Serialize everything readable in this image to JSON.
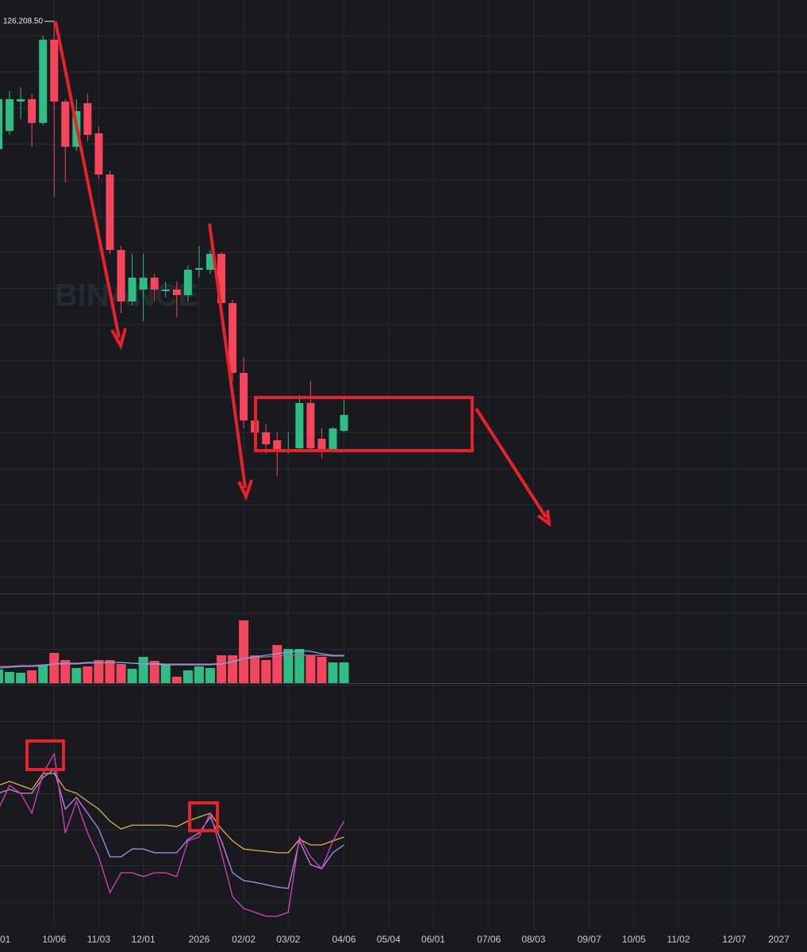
{
  "chart_data": [
    {
      "type": "candlestick",
      "watermark": "BINANCE",
      "categories": [
        "01",
        null,
        null,
        null,
        null,
        "10/06",
        null,
        null,
        null,
        "11/03",
        null,
        null,
        null,
        "12/01",
        null,
        null,
        null,
        null,
        "2026",
        null,
        null,
        null,
        "02/02",
        null,
        null,
        null,
        "03/02",
        null,
        null,
        null,
        null,
        "04/06",
        null,
        null,
        null,
        "05/04",
        null,
        null,
        null,
        "06/01",
        null,
        null,
        null,
        null,
        "07/06",
        null,
        null,
        null,
        "08/03",
        null,
        null,
        null,
        null,
        "09/07",
        null,
        null,
        null,
        "10/05",
        null,
        null,
        null,
        "11/02",
        null,
        null,
        null,
        null,
        "12/07",
        null,
        null,
        null,
        "2027"
      ],
      "ohlc": [
        [
          110100,
          117400,
          109900,
          116400
        ],
        [
          112400,
          117400,
          111900,
          116400
        ],
        [
          116100,
          117900,
          113900,
          116400
        ],
        [
          116400,
          117100,
          110400,
          113400
        ],
        [
          113400,
          124400,
          113100,
          123900
        ],
        [
          123900,
          126208.5,
          104100,
          116100
        ],
        [
          116100,
          116400,
          105900,
          110400
        ],
        [
          110400,
          116400,
          109900,
          114900
        ],
        [
          115900,
          117100,
          111100,
          111900
        ],
        [
          112100,
          112900,
          106400,
          106900
        ],
        [
          106900,
          107400,
          96900,
          97400
        ],
        [
          97400,
          97900,
          89400,
          90900
        ],
        [
          90900,
          96900,
          90400,
          93900
        ],
        [
          92400,
          96900,
          88400,
          93900
        ],
        [
          93900,
          94400,
          90900,
          92400
        ],
        [
          92200,
          93400,
          91400,
          92400
        ],
        [
          92400,
          93400,
          88900,
          91700
        ],
        [
          91700,
          95400,
          90900,
          94900
        ],
        [
          94900,
          97900,
          93900,
          95100
        ],
        [
          94900,
          97400,
          94400,
          96900
        ],
        [
          96900,
          97100,
          89900,
          90700
        ],
        [
          90700,
          91100,
          80900,
          81900
        ],
        [
          81900,
          83900,
          74900,
          75900
        ],
        [
          75900,
          76900,
          71900,
          74400
        ],
        [
          74400,
          75400,
          71700,
          72900
        ],
        [
          73400,
          74400,
          68900,
          71900
        ],
        [
          71900,
          74400,
          71700,
          72200
        ],
        [
          72400,
          79100,
          71900,
          78100
        ],
        [
          78100,
          80900,
          71900,
          72400
        ],
        [
          73600,
          74900,
          71100,
          72200
        ],
        [
          72300,
          75100,
          72100,
          74900
        ],
        [
          74600,
          78900,
          74400,
          76600
        ],
        null,
        null,
        null,
        null,
        null,
        null,
        null,
        null,
        null,
        null,
        null,
        null,
        null,
        null,
        null,
        null,
        null,
        null,
        null,
        null,
        null,
        null,
        null,
        null,
        null,
        null,
        null,
        null,
        null,
        null,
        null,
        null,
        null,
        null,
        null,
        null,
        null,
        null,
        null
      ],
      "up_color": "#2ebd85",
      "down_color": "#f6465d",
      "ylim": [
        53900,
        128900
      ],
      "max_label": {
        "value": 126208.5,
        "label": "126,208.50"
      }
    },
    {
      "type": "volume",
      "values": [
        18,
        15,
        14,
        17,
        24,
        39,
        30,
        20,
        22,
        30,
        30,
        25,
        19,
        34,
        29,
        25,
        9,
        17,
        22,
        20,
        36,
        36,
        80,
        36,
        30,
        49,
        44,
        44,
        36,
        34,
        27,
        27,
        null,
        null,
        null,
        null,
        null,
        null,
        null,
        null,
        null,
        null,
        null,
        null,
        null,
        null,
        null,
        null,
        null,
        null,
        null,
        null,
        null,
        null,
        null,
        null,
        null,
        null,
        null,
        null,
        null,
        null,
        null,
        null,
        null,
        null,
        null,
        null,
        null,
        null,
        null
      ],
      "lines": [
        {
          "color": "#e0588a",
          "values": [
            22,
            22,
            23,
            23,
            24,
            25,
            25,
            25,
            26,
            26,
            27,
            27,
            26,
            26,
            26,
            25,
            25,
            25,
            25,
            25,
            26,
            27,
            32,
            33,
            34,
            35,
            36,
            36,
            36,
            36,
            35,
            35,
            null,
            null,
            null,
            null,
            null,
            null,
            null,
            null,
            null,
            null,
            null,
            null,
            null,
            null,
            null,
            null,
            null,
            null,
            null,
            null,
            null,
            null,
            null,
            null,
            null,
            null,
            null,
            null,
            null,
            null,
            null,
            null,
            null,
            null,
            null,
            null,
            null,
            null,
            null
          ]
        },
        {
          "color": "#5bb8e8",
          "values": [
            20,
            21,
            22,
            22,
            23,
            25,
            26,
            26,
            27,
            27,
            27,
            27,
            26,
            25,
            25,
            24,
            24,
            24,
            24,
            24,
            25,
            28,
            32,
            34,
            36,
            38,
            40,
            42,
            41,
            38,
            36,
            36,
            null,
            null,
            null,
            null,
            null,
            null,
            null,
            null,
            null,
            null,
            null,
            null,
            null,
            null,
            null,
            null,
            null,
            null,
            null,
            null,
            null,
            null,
            null,
            null,
            null,
            null,
            null,
            null,
            null,
            null,
            null,
            null,
            null,
            null,
            null,
            null,
            null,
            null,
            null
          ]
        }
      ],
      "ylim": [
        0,
        110
      ]
    },
    {
      "type": "line",
      "series": [
        {
          "color": "#e8b339",
          "values": [
            60,
            61.7,
            60,
            58.3,
            65,
            65,
            58.3,
            56.7,
            53.3,
            50,
            45,
            41.7,
            43.3,
            43.3,
            43.3,
            43.3,
            42.7,
            45,
            46.7,
            48.3,
            41.7,
            36.7,
            33.3,
            32.7,
            32.3,
            31.7,
            31.7,
            37.3,
            35,
            35,
            36.7,
            38.3,
            null,
            null,
            null,
            null,
            null,
            null,
            null,
            null,
            null,
            null,
            null,
            null,
            null,
            null,
            null,
            null,
            null,
            null,
            null,
            null,
            null,
            null,
            null,
            null,
            null,
            null,
            null,
            null,
            null,
            null,
            null,
            null,
            null,
            null,
            null,
            null,
            null,
            null,
            null
          ]
        },
        {
          "color": "#b48cf2",
          "values": [
            56.7,
            58.3,
            56.7,
            56.7,
            63.3,
            66.7,
            50,
            55,
            48.3,
            41.7,
            30,
            30,
            33.3,
            33.3,
            31.7,
            31.7,
            31.7,
            37.3,
            40,
            46.7,
            36.7,
            23.3,
            20,
            19.3,
            18.3,
            17.3,
            16.7,
            36.7,
            26.7,
            25,
            31.7,
            35,
            null,
            null,
            null,
            null,
            null,
            null,
            null,
            null,
            null,
            null,
            null,
            null,
            null,
            null,
            null,
            null,
            null,
            null,
            null,
            null,
            null,
            null,
            null,
            null,
            null,
            null,
            null,
            null,
            null,
            null,
            null,
            null,
            null,
            null,
            null,
            null,
            null,
            null,
            null
          ]
        },
        {
          "color": "#e040b8",
          "values": [
            50,
            60,
            56.7,
            48.3,
            65,
            73.3,
            40,
            53.3,
            40,
            30,
            15,
            23.3,
            23.3,
            21.7,
            23.3,
            23.3,
            21.7,
            36.7,
            38.3,
            48.3,
            31.7,
            13.3,
            8.3,
            6.7,
            5,
            5,
            6.7,
            38.3,
            30,
            25,
            36.7,
            45,
            null,
            null,
            null,
            null,
            null,
            null,
            null,
            null,
            null,
            null,
            null,
            null,
            null,
            null,
            null,
            null,
            null,
            null,
            null,
            null,
            null,
            null,
            null,
            null,
            null,
            null,
            null,
            null,
            null,
            null,
            null,
            null,
            null,
            null,
            null,
            null,
            null,
            null,
            null
          ]
        }
      ],
      "ylim": [
        0,
        100
      ]
    }
  ]
}
